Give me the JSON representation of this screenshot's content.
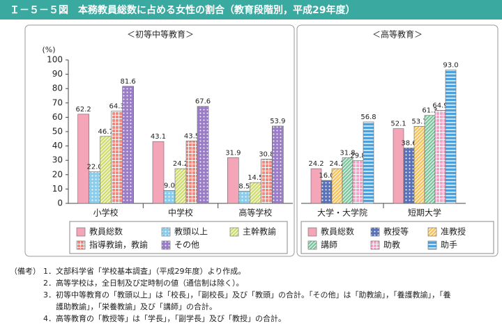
{
  "title": "Ｉ－５－５図　本務教員総数に占める女性の割合（教育段階別，平成29年度）",
  "chart_data": [
    {
      "type": "bar",
      "subtitle": "＜初等中等教育＞",
      "y_label": "(%)",
      "categories": [
        "小学校",
        "中学校",
        "高等学校"
      ],
      "ylim": [
        0,
        100
      ],
      "yticks": [
        0,
        10,
        20,
        30,
        40,
        50,
        60,
        70,
        80,
        90,
        100
      ],
      "series": [
        {
          "name": "教員総数",
          "color": "#f4a6b8",
          "pattern": "solid",
          "values": [
            62.2,
            43.1,
            31.9
          ],
          "value_labels": [
            "62.2",
            "43.1",
            "31.9"
          ]
        },
        {
          "name": "教頭以上",
          "color": "#8ccdec",
          "pattern": "dots",
          "values": [
            22.0,
            9.0,
            8.5
          ],
          "value_labels": [
            "22.0",
            "9.0",
            "8.5"
          ]
        },
        {
          "name": "主幹教諭",
          "color": "#cfdc6e",
          "pattern": "diagonal",
          "values": [
            46.7,
            24.2,
            14.5
          ],
          "value_labels": [
            "46.7",
            "24.2",
            "14.5"
          ]
        },
        {
          "name": "指導教諭，教諭",
          "color": "#ef8a80",
          "pattern": "grid",
          "values": [
            64.3,
            43.5,
            30.8
          ],
          "value_labels": [
            "64.3",
            "43.5",
            "30.8"
          ]
        },
        {
          "name": "その他",
          "color": "#9b7cc6",
          "pattern": "dots",
          "values": [
            81.6,
            67.6,
            53.9
          ],
          "value_labels": [
            "81.6",
            "67.6",
            "53.9"
          ]
        }
      ]
    },
    {
      "type": "bar",
      "subtitle": "＜高等教育＞",
      "categories": [
        "大学・大学院",
        "短期大学"
      ],
      "ylim": [
        0,
        100
      ],
      "series": [
        {
          "name": "教員総数",
          "color": "#f4a6b8",
          "pattern": "solid",
          "values": [
            24.2,
            52.1
          ],
          "value_labels": [
            "24.2",
            "52.1"
          ]
        },
        {
          "name": "教授等",
          "color": "#5a72b8",
          "pattern": "dots",
          "values": [
            16.0,
            38.6
          ],
          "value_labels": [
            "16.0",
            "38.6"
          ]
        },
        {
          "name": "准教授",
          "color": "#f6c25a",
          "pattern": "diagonal",
          "values": [
            24.2,
            53.7
          ],
          "value_labels": [
            "24.2",
            "53.7"
          ]
        },
        {
          "name": "講師",
          "color": "#7cc79e",
          "pattern": "diagonal",
          "values": [
            31.8,
            61.3
          ],
          "value_labels": [
            "31.8",
            "61.3"
          ]
        },
        {
          "name": "助教",
          "color": "#f2a3c6",
          "pattern": "grid",
          "values": [
            29.8,
            64.9
          ],
          "value_labels": [
            "29.8",
            "64.9"
          ]
        },
        {
          "name": "助手",
          "color": "#49a2e0",
          "pattern": "hstripes",
          "values": [
            56.8,
            93.0
          ],
          "value_labels": [
            "56.8",
            "93.0"
          ]
        }
      ]
    }
  ],
  "notes": {
    "label": "（備考）",
    "items": [
      {
        "number": "1．",
        "text": "文部科学省「学校基本調査」（平成29年度）より作成。"
      },
      {
        "number": "2．",
        "text": "高等学校は，全日制及び定時制の値（通信制は除く）。"
      },
      {
        "number": "3．",
        "text": "初等中等教育の「教頭以上」は「校長」，「副校長」及び「教頭」の合計。「その他」は「助教諭」，「養護教諭」，「養"
      },
      {
        "number": "",
        "text": "護助教諭」，「栄養教諭」及び「講師」の合計。"
      },
      {
        "number": "4．",
        "text": "高等教育の「教授等」は「学長」，「副学長」及び「教授」の合計。"
      }
    ]
  }
}
